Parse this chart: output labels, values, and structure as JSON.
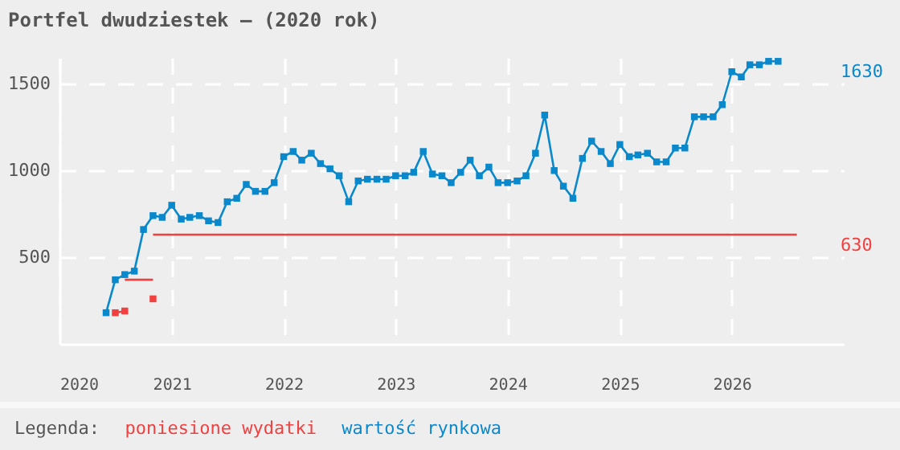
{
  "chart_data": {
    "type": "line",
    "title": "Portfel dwudziestek – (2020 rok)",
    "legend_title": "Legenda:",
    "legend": "bottom",
    "grid": true,
    "line_style": "solid",
    "marker": "square",
    "xlim": [
      "2020-01",
      "2027-01"
    ],
    "xticks": [
      "2020",
      "2021",
      "2022",
      "2023",
      "2024",
      "2025",
      "2026"
    ],
    "ylim": [
      0,
      1650
    ],
    "yticks": [
      500,
      1000,
      1500
    ],
    "series": [
      {
        "name": "poniesione wydatki",
        "color": "#f04040",
        "x": [
          "2020-07",
          "2020-08"
        ],
        "values": [
          180,
          190
        ]
      },
      {
        "color": "#f04040",
        "type": "scatter",
        "x": [
          "2020-11"
        ],
        "values": [
          260
        ]
      },
      {
        "color": "#f04040",
        "marker": "none",
        "x": [
          "2020-08",
          "2020-11"
        ],
        "values": [
          370,
          370
        ]
      },
      {
        "color": "#f04040",
        "marker": "none",
        "x": [
          "2020-11",
          "2026-08"
        ],
        "values": [
          630,
          630
        ]
      },
      {
        "name": "wartość rynkowa",
        "color": "#0a88cc",
        "x": [
          "2020-06",
          "2020-07",
          "2020-08",
          "2020-09",
          "2020-10",
          "2020-11",
          "2020-12",
          "2021-01",
          "2021-02",
          "2021-03",
          "2021-04",
          "2021-05",
          "2021-06",
          "2021-07",
          "2021-08",
          "2021-09",
          "2021-10",
          "2021-11",
          "2021-12",
          "2022-01",
          "2022-02",
          "2022-03",
          "2022-04",
          "2022-05",
          "2022-06",
          "2022-07",
          "2022-08",
          "2022-09",
          "2022-10",
          "2022-11",
          "2022-12",
          "2023-01",
          "2023-02",
          "2023-03",
          "2023-04",
          "2023-05",
          "2023-06",
          "2023-07",
          "2023-08",
          "2023-09",
          "2023-10",
          "2023-11",
          "2023-12",
          "2024-01",
          "2024-02",
          "2024-03",
          "2024-04",
          "2024-05",
          "2024-06",
          "2024-07",
          "2024-08",
          "2024-09",
          "2024-10",
          "2024-11",
          "2024-12",
          "2025-01",
          "2025-02",
          "2025-03",
          "2025-04",
          "2025-05",
          "2025-06",
          "2025-07",
          "2025-08",
          "2025-09",
          "2025-10",
          "2025-11",
          "2025-12",
          "2026-01",
          "2026-02",
          "2026-03",
          "2026-04",
          "2026-05",
          "2026-06"
        ],
        "values": [
          180,
          370,
          400,
          420,
          660,
          740,
          730,
          800,
          720,
          730,
          740,
          710,
          700,
          820,
          840,
          920,
          880,
          880,
          930,
          1080,
          1110,
          1060,
          1100,
          1040,
          1010,
          970,
          820,
          940,
          950,
          950,
          950,
          970,
          970,
          990,
          1110,
          980,
          970,
          930,
          990,
          1060,
          970,
          1020,
          930,
          930,
          940,
          970,
          1100,
          1320,
          1000,
          910,
          840,
          1070,
          1170,
          1110,
          1040,
          1150,
          1080,
          1090,
          1100,
          1050,
          1050,
          1130,
          1130,
          1310,
          1310,
          1310,
          1380,
          1570,
          1540,
          1610,
          1610,
          1630,
          1630
        ]
      }
    ],
    "annotations": [
      "1630",
      "630"
    ]
  }
}
